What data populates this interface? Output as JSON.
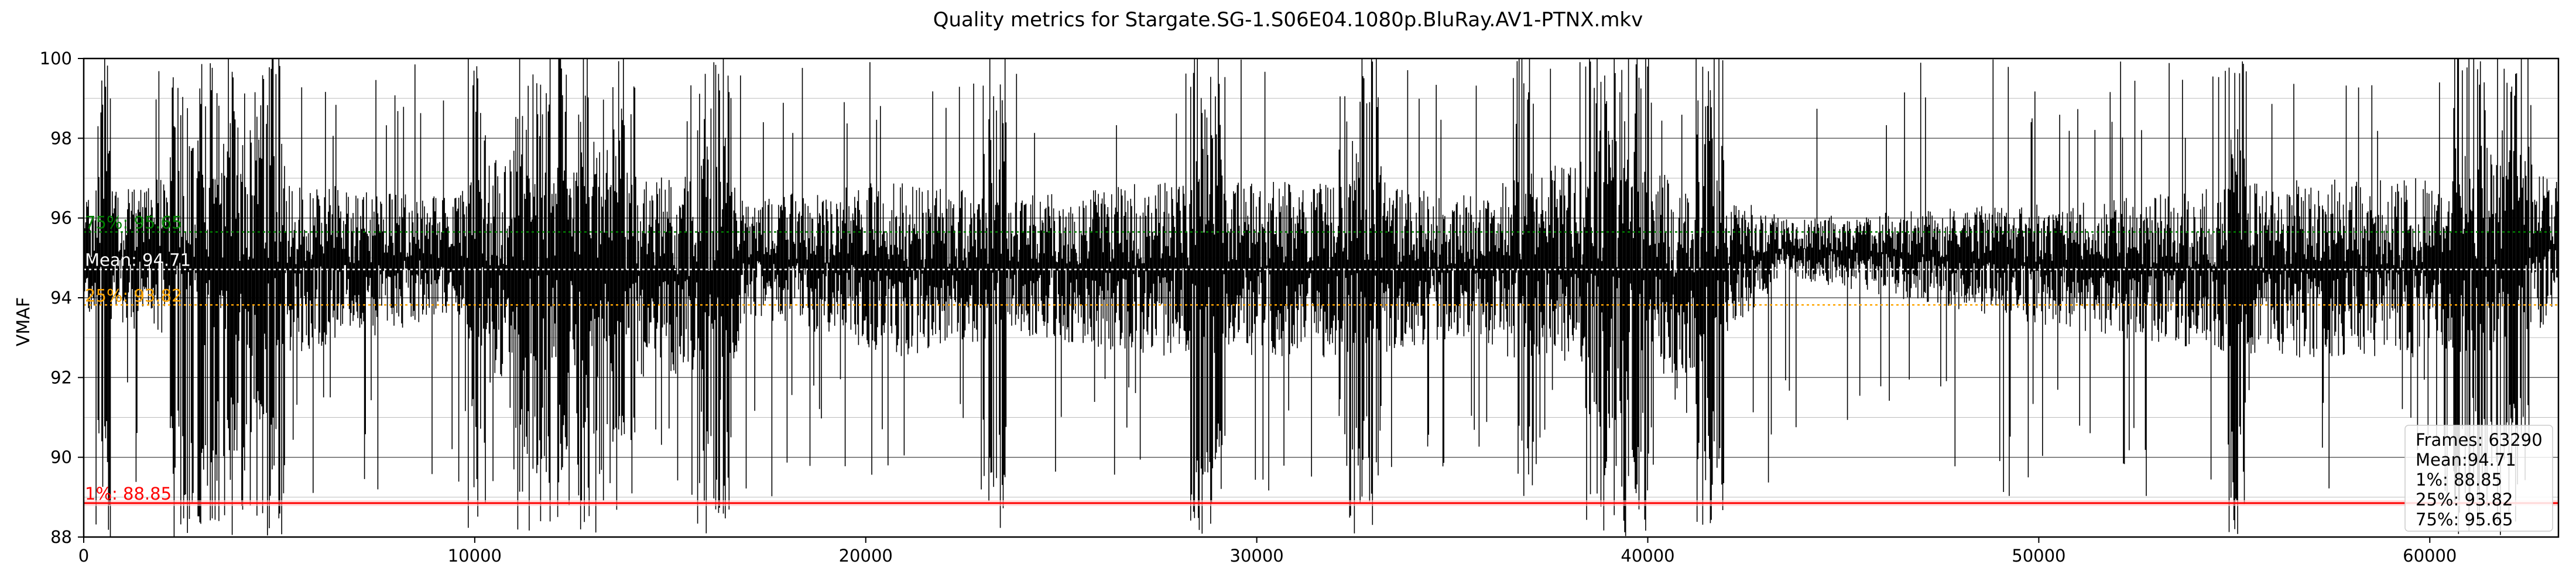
{
  "chart_data": {
    "type": "line",
    "title": "Quality metrics for Stargate.SG-1.S06E04.1080p.BluRay.AV1-PTNX.mkv",
    "xlabel": "",
    "ylabel": "VMAF",
    "xlim": [
      0,
      63290
    ],
    "ylim": [
      88,
      100
    ],
    "x_ticks": [
      0,
      10000,
      20000,
      30000,
      40000,
      50000,
      60000
    ],
    "x_tick_labels": [
      "0",
      "10000",
      "20000",
      "30000",
      "40000",
      "50000",
      "60000"
    ],
    "y_ticks": [
      88,
      90,
      92,
      94,
      96,
      98,
      100
    ],
    "y_tick_labels": [
      "88",
      "90",
      "92",
      "94",
      "96",
      "98",
      "100"
    ],
    "grid": true,
    "series": [
      {
        "color": "#000000",
        "frames": 63290,
        "band_low": [
          [
            0,
            93.5
          ],
          [
            2000,
            93.0
          ],
          [
            2500,
            94.5
          ],
          [
            3000,
            92.5
          ],
          [
            5000,
            92.5
          ],
          [
            9500,
            93.5
          ],
          [
            10500,
            92.0
          ],
          [
            16500,
            92.0
          ],
          [
            17000,
            93.5
          ],
          [
            21000,
            92.5
          ],
          [
            23500,
            93.0
          ],
          [
            28000,
            92.5
          ],
          [
            33000,
            92.5
          ],
          [
            35000,
            93.0
          ],
          [
            38000,
            92.0
          ],
          [
            41000,
            92.0
          ],
          [
            43500,
            94.5
          ],
          [
            52000,
            93.0
          ],
          [
            56000,
            92.5
          ],
          [
            61500,
            92.5
          ],
          [
            63290,
            93.5
          ]
        ],
        "band_high": [
          [
            0,
            96.5
          ],
          [
            2000,
            97.0
          ],
          [
            2500,
            95.5
          ],
          [
            3000,
            97.5
          ],
          [
            5000,
            97.0
          ],
          [
            9500,
            96.5
          ],
          [
            10500,
            97.5
          ],
          [
            16500,
            97.0
          ],
          [
            17000,
            96.5
          ],
          [
            21000,
            97.0
          ],
          [
            23500,
            96.5
          ],
          [
            28000,
            97.0
          ],
          [
            33000,
            97.0
          ],
          [
            35000,
            96.5
          ],
          [
            38000,
            97.5
          ],
          [
            41000,
            97.0
          ],
          [
            43500,
            96.0
          ],
          [
            52000,
            96.5
          ],
          [
            56000,
            97.0
          ],
          [
            61500,
            97.0
          ],
          [
            62300,
            97.5
          ],
          [
            63290,
            97.0
          ]
        ],
        "dip_regions": [
          [
            300,
            700
          ],
          [
            2200,
            5200
          ],
          [
            9800,
            10300
          ],
          [
            11000,
            14200
          ],
          [
            15600,
            16600
          ],
          [
            23000,
            23600
          ],
          [
            28300,
            29200
          ],
          [
            32100,
            33200
          ],
          [
            36600,
            37100
          ],
          [
            38400,
            40100
          ],
          [
            41200,
            42000
          ],
          [
            54800,
            55300
          ],
          [
            60600,
            62600
          ]
        ]
      }
    ],
    "stat_lines": [
      {
        "label": "75%: 95.65",
        "value": 95.65,
        "color": "#008000",
        "style": "dotted"
      },
      {
        "label": "Mean: 94.71",
        "value": 94.71,
        "color": "#ffffff",
        "style": "dotted"
      },
      {
        "label": "25%: 93.82",
        "value": 93.82,
        "color": "#ffa500",
        "style": "dotted"
      },
      {
        "label": "1%: 88.85",
        "value": 88.85,
        "color": "#ff0000",
        "style": "solid"
      }
    ],
    "legend": {
      "position": "bottom-right",
      "entries": [
        "Frames: 63290",
        "Mean:94.71",
        "1%: 88.85",
        "25%: 93.82",
        "75%: 95.65"
      ]
    }
  }
}
